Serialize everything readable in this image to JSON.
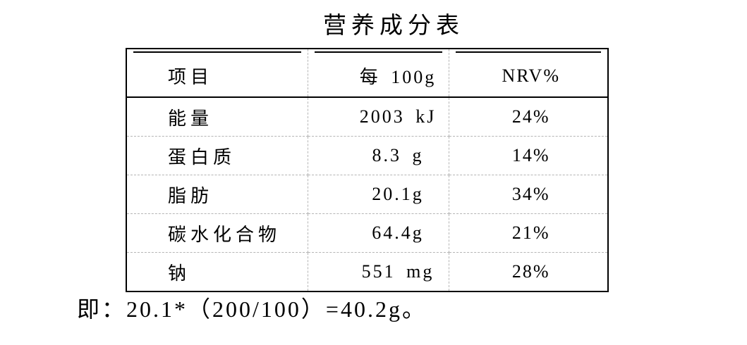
{
  "title": "营养成分表",
  "table": {
    "columns": [
      "项目",
      "每 100g",
      "NRV%"
    ],
    "rows": [
      {
        "item": "能量",
        "per_100g": "2003 kJ",
        "nrv": "24%"
      },
      {
        "item": "蛋白质",
        "per_100g": "8.3 g",
        "nrv": "14%"
      },
      {
        "item": "脂肪",
        "per_100g": "20.1g",
        "nrv": "34%"
      },
      {
        "item": "碳水化合物",
        "per_100g": "64.4g",
        "nrv": "21%"
      },
      {
        "item": "钠",
        "per_100g": "551 mg",
        "nrv": "28%"
      }
    ]
  },
  "footnote": "即：20.1*（200/100）=40.2g。",
  "colors": {
    "text": "#000000",
    "border_solid": "#000000",
    "border_dashed": "#b5b5b5",
    "background": "#ffffff"
  }
}
